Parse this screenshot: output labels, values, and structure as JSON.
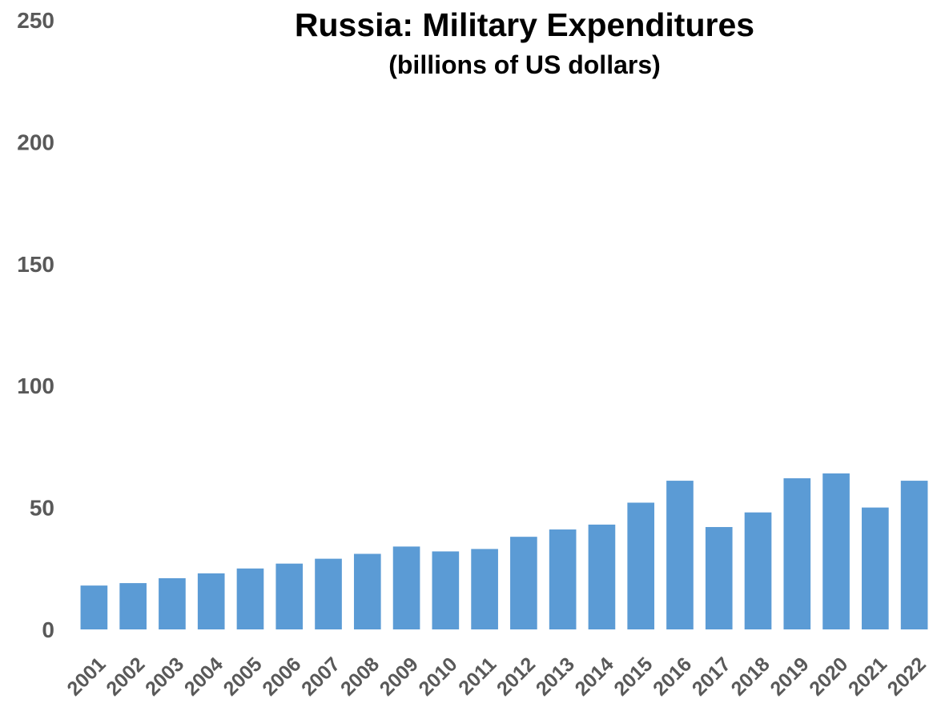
{
  "chart_data": {
    "type": "bar",
    "title": "Russia: Military Expenditures",
    "subtitle": "(billions of US dollars)",
    "xlabel": "",
    "ylabel": "",
    "categories": [
      "2001",
      "2002",
      "2003",
      "2004",
      "2005",
      "2006",
      "2007",
      "2008",
      "2009",
      "2010",
      "2011",
      "2012",
      "2013",
      "2014",
      "2015",
      "2016",
      "2017",
      "2018",
      "2019",
      "2020",
      "2021",
      "2022"
    ],
    "values": [
      18,
      19,
      21,
      23,
      25,
      27,
      29,
      31,
      34,
      32,
      33,
      38,
      41,
      43,
      52,
      61,
      42,
      48,
      62,
      64,
      50,
      61
    ],
    "ylim": [
      0,
      250
    ],
    "yticks": [
      "0",
      "50",
      "100",
      "150",
      "200",
      "250"
    ],
    "grid": false,
    "legend": "none",
    "bar_color": "#5b9bd5"
  }
}
